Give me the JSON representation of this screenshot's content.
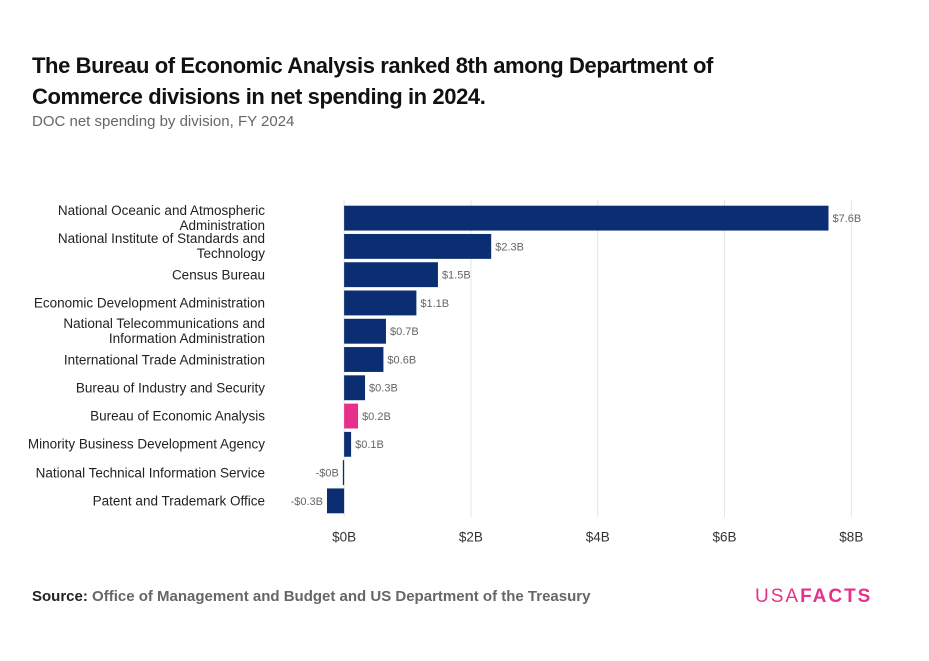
{
  "chart_data": {
    "type": "bar",
    "orientation": "horizontal",
    "title": "The Bureau of Economic Analysis ranked 8th among Department of Commerce divisions in net spending in 2024.",
    "subtitle": "DOC net spending by division, FY 2024",
    "categories": [
      "National Oceanic and Atmospheric Administration",
      "National Institute of Standards and Technology",
      "Census Bureau",
      "Economic Development Administration",
      "National Telecommunications and Information Administration",
      "International Trade Administration",
      "Bureau of Industry and Security",
      "Bureau of Economic Analysis",
      "Minority Business Development Agency",
      "National Technical Information Service",
      "Patent and Trademark Office"
    ],
    "values": [
      7.64,
      2.32,
      1.48,
      1.14,
      0.66,
      0.62,
      0.33,
      0.22,
      0.11,
      -0.02,
      -0.27
    ],
    "value_labels": [
      "$7.6B",
      "$2.3B",
      "$1.5B",
      "$1.1B",
      "$0.7B",
      "$0.6B",
      "$0.3B",
      "$0.2B",
      "$0.1B",
      "-$0B",
      "-$0.3B"
    ],
    "colors": [
      "#0b2e72",
      "#0b2e72",
      "#0b2e72",
      "#0b2e72",
      "#0b2e72",
      "#0b2e72",
      "#0b2e72",
      "#e6318b",
      "#0b2e72",
      "#0b2e72",
      "#0b2e72"
    ],
    "xlim": [
      -0.27,
      8.2
    ],
    "xticks": [
      {
        "value": 0,
        "label": "$0B"
      },
      {
        "value": 2,
        "label": "$2B"
      },
      {
        "value": 4,
        "label": "$4B"
      },
      {
        "value": 6,
        "label": "$6B"
      },
      {
        "value": 8,
        "label": "$8B"
      }
    ],
    "grid": true,
    "source_label": "Source:",
    "source": "Office of Management and Budget and US Department of the Treasury",
    "logo": {
      "light": "USA",
      "bold": "FACTS"
    }
  }
}
